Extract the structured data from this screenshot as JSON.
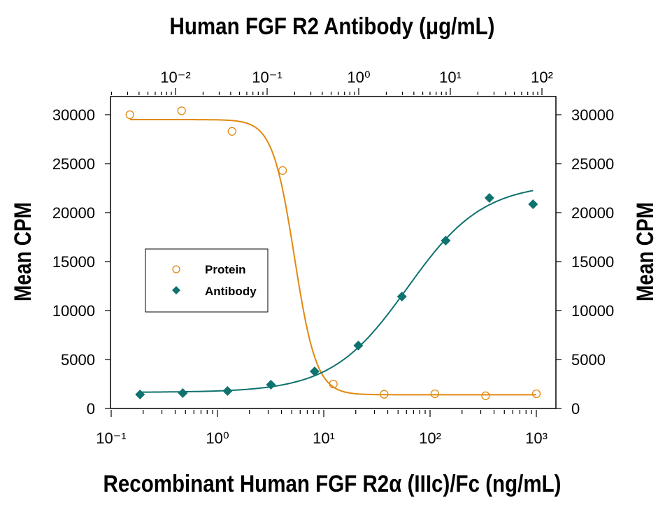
{
  "chart_data": {
    "type": "scatter",
    "title": "",
    "x_top_label": "Human FGF R2 Antibody (μg/mL)",
    "x_bottom_label": "Recombinant Human FGF R2α (IIIc)/Fc (ng/mL)",
    "y_left_label": "Mean CPM",
    "y_right_label": "Mean CPM",
    "x_bottom_scale": "log",
    "x_bottom_lim": [
      0.1,
      1500
    ],
    "x_bottom_ticks": [
      {
        "v": 0.1,
        "label": "10⁻¹"
      },
      {
        "v": 1,
        "label": "10⁰"
      },
      {
        "v": 10,
        "label": "10¹"
      },
      {
        "v": 100,
        "label": "10²"
      },
      {
        "v": 1000,
        "label": "10³"
      }
    ],
    "x_top_scale": "log",
    "x_top_lim": [
      0.0025,
      150
    ],
    "x_top_ticks": [
      {
        "v": 0.01,
        "label": "10⁻²"
      },
      {
        "v": 0.1,
        "label": "10⁻¹"
      },
      {
        "v": 1,
        "label": "10⁰"
      },
      {
        "v": 10,
        "label": "10¹"
      },
      {
        "v": 100,
        "label": "10²"
      }
    ],
    "ylim": [
      0,
      32000
    ],
    "y_ticks": [
      "0",
      "5000",
      "10000",
      "15000",
      "20000",
      "25000",
      "30000"
    ],
    "grid": false,
    "legend_position": "center-left",
    "series": [
      {
        "name": "Protein",
        "axis": "bottom",
        "marker": "open-circle",
        "color": "#E0890F",
        "x": [
          0.15,
          0.46,
          1.37,
          4.1,
          12.3,
          37,
          111,
          333,
          1000
        ],
        "y": [
          30000,
          30400,
          28300,
          24300,
          2500,
          1450,
          1500,
          1300,
          1500
        ]
      },
      {
        "name": "Antibody",
        "axis": "top",
        "marker": "filled-diamond",
        "color": "#0E726E",
        "x": [
          0.0041,
          0.012,
          0.037,
          0.11,
          0.33,
          0.99,
          2.96,
          8.9,
          26.7,
          80
        ],
        "y": [
          1430,
          1570,
          1790,
          2430,
          3790,
          6430,
          11430,
          17140,
          21500,
          20860
        ]
      }
    ]
  }
}
